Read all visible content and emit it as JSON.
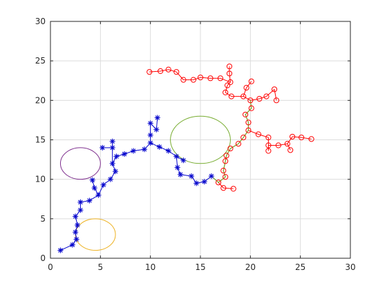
{
  "chart_data": {
    "type": "scatter",
    "title": "",
    "xlabel": "",
    "ylabel": "",
    "xlim": [
      0,
      30
    ],
    "ylim": [
      0,
      30
    ],
    "grid": true,
    "x_ticks": [
      0,
      5,
      10,
      15,
      20,
      25,
      30
    ],
    "y_ticks": [
      0,
      5,
      10,
      15,
      20,
      25,
      30
    ],
    "colors": {
      "blue_tree": "#0000cc",
      "red_tree": "#ff0000",
      "path": "#77ac30",
      "circle_purple": "#7e2f8e",
      "circle_orange": "#edb120",
      "circle_green": "#77ac30",
      "axis": "#262626",
      "grid": "#dcdcdc"
    },
    "obstacles": [
      {
        "name": "circle-purple",
        "color": "#7e2f8e",
        "cx": 3.0,
        "cy": 12.0,
        "r": 2.0
      },
      {
        "name": "circle-orange",
        "color": "#edb120",
        "cx": 4.5,
        "cy": 3.0,
        "r": 2.0
      },
      {
        "name": "circle-green",
        "color": "#77ac30",
        "cx": 15.0,
        "cy": 15.0,
        "r": 3.0
      }
    ],
    "blue_tree": {
      "marker": "asterisk",
      "color": "#0000cc",
      "points": [
        [
          1.0,
          1.0
        ],
        [
          2.2,
          1.7
        ],
        [
          2.6,
          2.4
        ],
        [
          2.5,
          3.3
        ],
        [
          2.7,
          4.2
        ],
        [
          2.5,
          5.3
        ],
        [
          3.0,
          6.1
        ],
        [
          3.0,
          7.1
        ],
        [
          3.9,
          7.3
        ],
        [
          4.8,
          8.0
        ],
        [
          4.4,
          8.9
        ],
        [
          4.2,
          9.9
        ],
        [
          5.3,
          9.3
        ],
        [
          6.0,
          10.0
        ],
        [
          6.5,
          11.0
        ],
        [
          6.2,
          12.0
        ],
        [
          6.6,
          12.9
        ],
        [
          6.2,
          14.0
        ],
        [
          6.2,
          14.8
        ],
        [
          5.2,
          14.0
        ],
        [
          7.4,
          13.2
        ],
        [
          8.3,
          13.6
        ],
        [
          9.4,
          13.8
        ],
        [
          10.0,
          14.6
        ],
        [
          10.0,
          15.6
        ],
        [
          10.0,
          17.1
        ],
        [
          10.6,
          16.3
        ],
        [
          10.7,
          17.8
        ],
        [
          10.9,
          14.1
        ],
        [
          11.8,
          13.6
        ],
        [
          12.6,
          12.9
        ],
        [
          13.3,
          12.4
        ],
        [
          12.7,
          11.5
        ],
        [
          13.0,
          10.6
        ],
        [
          14.1,
          10.4
        ],
        [
          14.6,
          9.5
        ],
        [
          15.4,
          9.7
        ],
        [
          16.1,
          10.4
        ]
      ],
      "edges": [
        [
          0,
          1
        ],
        [
          1,
          2
        ],
        [
          2,
          3
        ],
        [
          3,
          4
        ],
        [
          4,
          5
        ],
        [
          5,
          6
        ],
        [
          6,
          7
        ],
        [
          7,
          8
        ],
        [
          8,
          9
        ],
        [
          9,
          10
        ],
        [
          10,
          11
        ],
        [
          9,
          12
        ],
        [
          12,
          13
        ],
        [
          13,
          14
        ],
        [
          14,
          15
        ],
        [
          15,
          16
        ],
        [
          15,
          17
        ],
        [
          17,
          18
        ],
        [
          17,
          19
        ],
        [
          16,
          20
        ],
        [
          20,
          21
        ],
        [
          21,
          22
        ],
        [
          22,
          23
        ],
        [
          23,
          24
        ],
        [
          24,
          25
        ],
        [
          25,
          26
        ],
        [
          26,
          27
        ],
        [
          23,
          28
        ],
        [
          28,
          29
        ],
        [
          29,
          30
        ],
        [
          30,
          31
        ],
        [
          30,
          32
        ],
        [
          32,
          33
        ],
        [
          33,
          34
        ],
        [
          34,
          35
        ],
        [
          35,
          36
        ],
        [
          36,
          37
        ]
      ]
    },
    "red_tree": {
      "marker": "circle",
      "color": "#ff0000",
      "points": [
        [
          16.8,
          9.6
        ],
        [
          17.3,
          8.9
        ],
        [
          18.3,
          8.8
        ],
        [
          17.5,
          10.3
        ],
        [
          17.3,
          11.1
        ],
        [
          17.5,
          12.3
        ],
        [
          17.6,
          13.0
        ],
        [
          18.0,
          13.9
        ],
        [
          18.8,
          14.5
        ],
        [
          19.3,
          15.3
        ],
        [
          19.8,
          16.2
        ],
        [
          19.8,
          17.2
        ],
        [
          19.5,
          18.2
        ],
        [
          20.1,
          19.0
        ],
        [
          20.0,
          20.0
        ],
        [
          20.9,
          20.2
        ],
        [
          21.6,
          20.5
        ],
        [
          22.4,
          21.4
        ],
        [
          22.6,
          20.0
        ],
        [
          20.8,
          15.7
        ],
        [
          21.8,
          15.3
        ],
        [
          21.8,
          14.3
        ],
        [
          21.8,
          13.6
        ],
        [
          22.8,
          14.3
        ],
        [
          23.7,
          14.5
        ],
        [
          24.0,
          13.7
        ],
        [
          24.2,
          15.4
        ],
        [
          25.1,
          15.3
        ],
        [
          26.1,
          15.1
        ],
        [
          19.3,
          20.5
        ],
        [
          18.1,
          20.5
        ],
        [
          17.5,
          21.0
        ],
        [
          17.7,
          21.9
        ],
        [
          18.0,
          22.3
        ],
        [
          17.9,
          23.4
        ],
        [
          17.9,
          24.3
        ],
        [
          17.0,
          22.8
        ],
        [
          16.0,
          22.8
        ],
        [
          15.0,
          22.9
        ],
        [
          14.3,
          22.6
        ],
        [
          13.3,
          22.6
        ],
        [
          12.6,
          23.6
        ],
        [
          11.8,
          23.9
        ],
        [
          11.0,
          23.7
        ],
        [
          9.9,
          23.6
        ],
        [
          19.6,
          21.6
        ],
        [
          20.1,
          22.4
        ]
      ],
      "edges": [
        [
          0,
          1
        ],
        [
          1,
          2
        ],
        [
          0,
          3
        ],
        [
          3,
          4
        ],
        [
          4,
          5
        ],
        [
          5,
          6
        ],
        [
          6,
          7
        ],
        [
          7,
          8
        ],
        [
          8,
          9
        ],
        [
          9,
          10
        ],
        [
          10,
          11
        ],
        [
          11,
          12
        ],
        [
          12,
          13
        ],
        [
          13,
          14
        ],
        [
          14,
          15
        ],
        [
          15,
          16
        ],
        [
          16,
          17
        ],
        [
          17,
          18
        ],
        [
          10,
          19
        ],
        [
          19,
          20
        ],
        [
          20,
          21
        ],
        [
          21,
          22
        ],
        [
          21,
          23
        ],
        [
          23,
          24
        ],
        [
          24,
          25
        ],
        [
          24,
          26
        ],
        [
          26,
          27
        ],
        [
          27,
          28
        ],
        [
          14,
          29
        ],
        [
          29,
          30
        ],
        [
          30,
          31
        ],
        [
          31,
          32
        ],
        [
          32,
          33
        ],
        [
          33,
          34
        ],
        [
          34,
          35
        ],
        [
          33,
          36
        ],
        [
          36,
          37
        ],
        [
          37,
          38
        ],
        [
          38,
          39
        ],
        [
          39,
          40
        ],
        [
          40,
          41
        ],
        [
          41,
          42
        ],
        [
          42,
          43
        ],
        [
          43,
          44
        ],
        [
          29,
          45
        ],
        [
          45,
          46
        ]
      ]
    },
    "path": {
      "color": "#77ac30",
      "points": [
        [
          16.1,
          10.4
        ],
        [
          16.8,
          9.6
        ],
        [
          17.5,
          10.3
        ],
        [
          17.3,
          11.1
        ],
        [
          17.5,
          12.3
        ],
        [
          17.6,
          13.0
        ],
        [
          18.0,
          13.9
        ],
        [
          18.8,
          14.5
        ],
        [
          19.3,
          15.3
        ],
        [
          19.8,
          16.2
        ],
        [
          19.8,
          17.2
        ],
        [
          19.5,
          18.2
        ],
        [
          20.1,
          19.0
        ],
        [
          20.0,
          20.0
        ]
      ]
    }
  }
}
